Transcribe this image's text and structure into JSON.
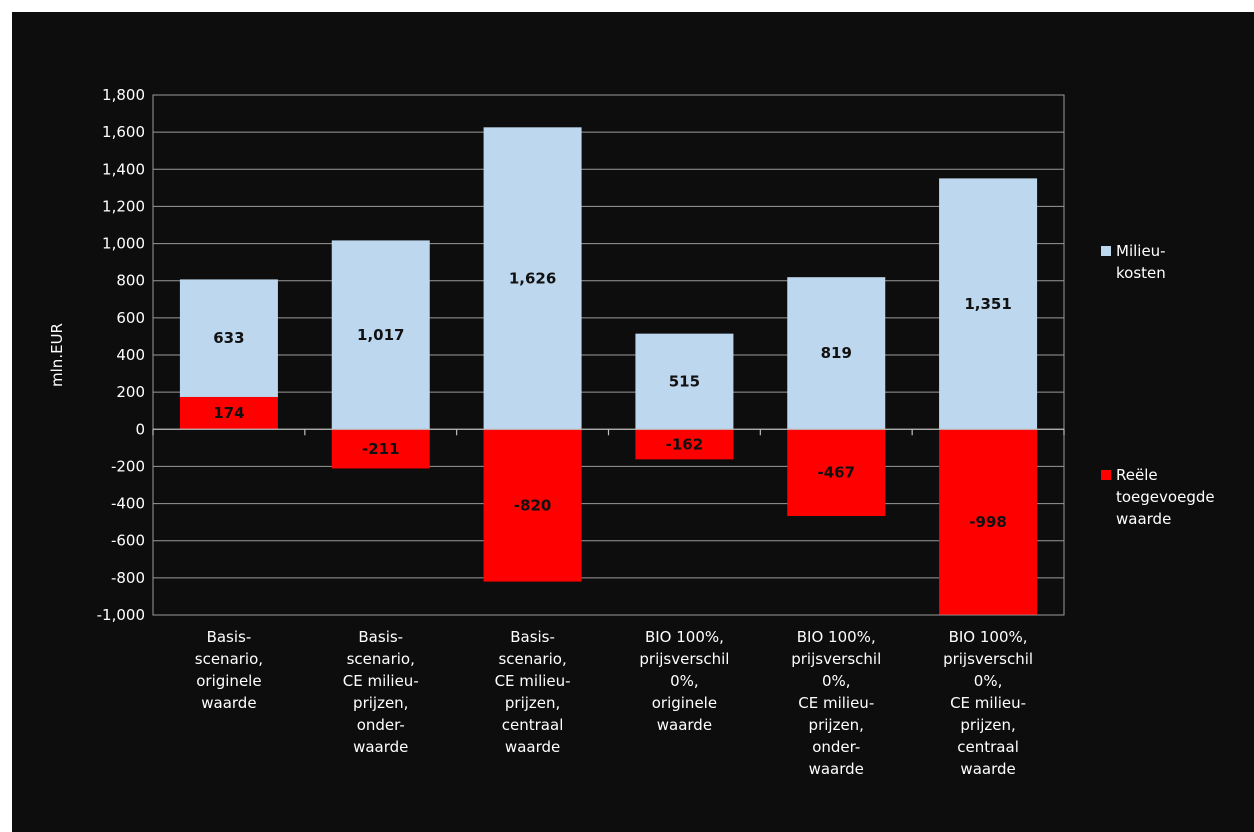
{
  "chart_data": {
    "type": "bar",
    "stacked": true,
    "ylabel": "mln.EUR",
    "ylim": [
      -1000,
      1800
    ],
    "yticks": [
      1800,
      1600,
      1400,
      1200,
      1000,
      800,
      600,
      400,
      200,
      0,
      -200,
      -400,
      -600,
      -800,
      -1000
    ],
    "ytick_labels": [
      "1,800",
      "1,600",
      "1,400",
      "1,200",
      "1,000",
      "800",
      "600",
      "400",
      "200",
      "0",
      "-200",
      "-400",
      "-600",
      "-800",
      "-1,000"
    ],
    "grid": true,
    "legend_position": "right",
    "categories": [
      [
        "Basis-",
        "scenario,",
        "originele",
        "waarde"
      ],
      [
        "Basis-",
        "scenario,",
        "CE milieu-",
        "prijzen,",
        "onder-",
        "waarde"
      ],
      [
        "Basis-",
        "scenario,",
        "CE milieu-",
        "prijzen,",
        "centraal",
        "waarde"
      ],
      [
        "BIO 100%,",
        "prijsverschil",
        "0%,",
        "originele",
        "waarde"
      ],
      [
        "BIO 100%,",
        "prijsverschil",
        "0%,",
        "CE milieu-",
        "prijzen,",
        "onder-",
        "waarde"
      ],
      [
        "BIO 100%,",
        "prijsverschil",
        "0%,",
        "CE milieu-",
        "prijzen,",
        "centraal",
        "waarde"
      ]
    ],
    "series": [
      {
        "name": "Milieu-kosten",
        "legend_lines": [
          "Milieu-",
          "kosten"
        ],
        "color": "#bdd7ee",
        "values": [
          633,
          1017,
          1626,
          515,
          819,
          1351
        ],
        "labels": [
          "633",
          "1,017",
          "1,626",
          "515",
          "819",
          "1,351"
        ]
      },
      {
        "name": "Reële toegevoegde waarde",
        "legend_lines": [
          "Reële",
          "toegevoegde",
          "waarde"
        ],
        "color": "#ff0000",
        "values": [
          174,
          -211,
          -820,
          -162,
          -467,
          -998
        ],
        "labels": [
          "174",
          "-211",
          "-820",
          "-162",
          "-467",
          "-998"
        ]
      }
    ]
  }
}
